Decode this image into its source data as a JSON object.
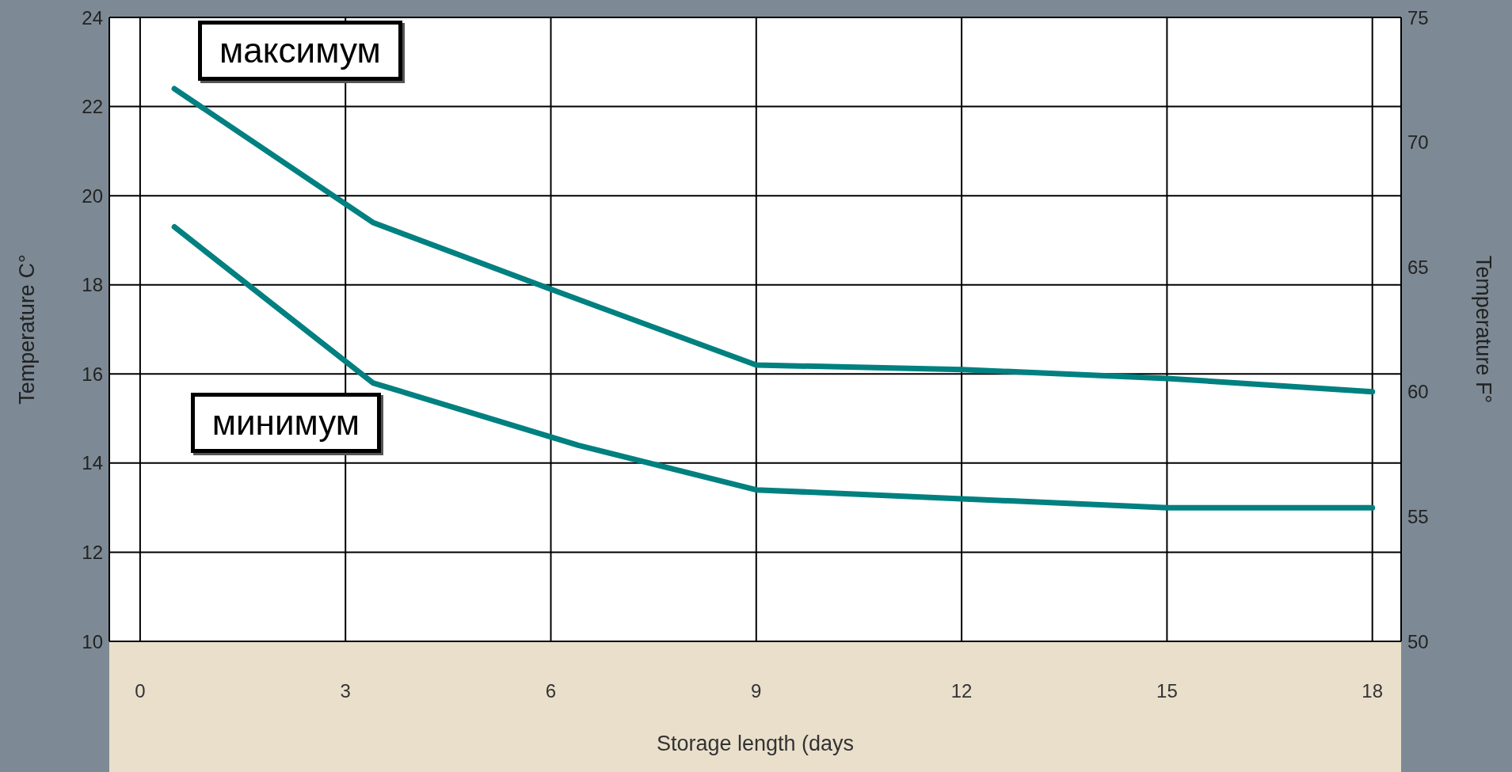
{
  "chart_data": {
    "type": "line",
    "xlabel": "Storage length (days",
    "ylabel": "Temperature C°",
    "y2label": "Temperature F°",
    "xlim": [
      -0.45,
      18.42
    ],
    "xticks": [
      0,
      3,
      6,
      9,
      12,
      15,
      18
    ],
    "ylim": [
      10,
      24
    ],
    "yticks": [
      10,
      12,
      14,
      16,
      18,
      20,
      22,
      24
    ],
    "y2lim": [
      50,
      75
    ],
    "y2ticks": [
      50,
      55,
      60,
      65,
      70,
      75
    ],
    "grid": true,
    "marker": "none",
    "line_style": "solid",
    "series": [
      {
        "name": "максимум",
        "color": "#008080",
        "x": [
          0.5,
          3.4,
          6,
          9,
          12,
          15,
          18
        ],
        "values": [
          22.4,
          19.4,
          17.9,
          16.2,
          16.1,
          15.9,
          15.6
        ]
      },
      {
        "name": "минимум",
        "color": "#008080",
        "x": [
          0.5,
          3.4,
          6.4,
          9,
          12,
          15,
          18
        ],
        "values": [
          19.3,
          15.8,
          14.4,
          13.4,
          13.2,
          13.0,
          13.0
        ]
      }
    ]
  }
}
